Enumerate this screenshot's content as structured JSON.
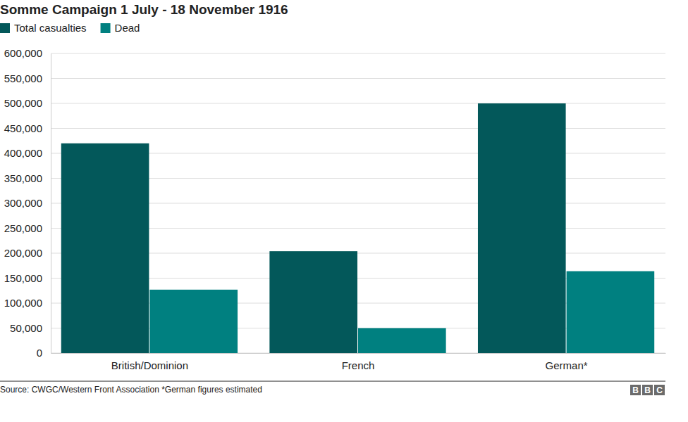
{
  "chart_data": {
    "type": "bar",
    "title": "Somme Campaign 1 July - 18 November 1916",
    "categories": [
      "British/Dominion",
      "French",
      "German*"
    ],
    "series": [
      {
        "name": "Total casualties",
        "color": "#03585a",
        "values": [
          420000,
          204000,
          500000
        ]
      },
      {
        "name": "Dead",
        "color": "#008080",
        "values": [
          127000,
          50000,
          164000
        ]
      }
    ],
    "ylim": [
      0,
      600000
    ],
    "yticks": [
      0,
      {
        "value": 50000,
        "label": "50,000"
      },
      {
        "value": 100000,
        "label": "100,000"
      },
      {
        "value": 150000,
        "label": "150,000"
      },
      {
        "value": 200000,
        "label": "200,000"
      },
      {
        "value": 250000,
        "label": "250,000"
      },
      {
        "value": 300000,
        "label": "300,000"
      },
      {
        "value": 350000,
        "label": "350,000"
      },
      {
        "value": 400000,
        "label": "400,000"
      },
      {
        "value": 450000,
        "label": "450,000"
      },
      {
        "value": 500000,
        "label": "500,000"
      },
      {
        "value": 550000,
        "label": "550,000"
      },
      {
        "value": 600000,
        "label": "600,000"
      }
    ],
    "grid": true,
    "legend": "top-left",
    "source": "Source: CWGC/Western Front Association *German figures estimated",
    "logo": "BBC"
  }
}
